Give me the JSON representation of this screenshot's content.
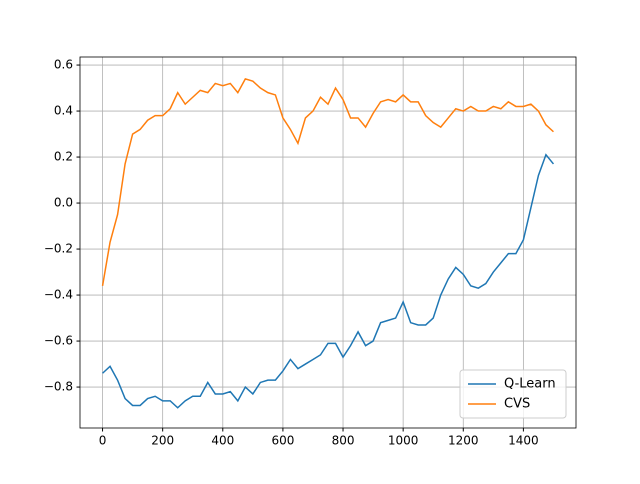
{
  "chart_data": {
    "type": "line",
    "x": [
      0,
      25,
      50,
      75,
      100,
      125,
      150,
      175,
      200,
      225,
      250,
      275,
      300,
      325,
      350,
      375,
      400,
      425,
      450,
      475,
      500,
      525,
      550,
      575,
      600,
      625,
      650,
      675,
      700,
      725,
      750,
      775,
      800,
      825,
      850,
      875,
      900,
      925,
      950,
      975,
      1000,
      1025,
      1050,
      1075,
      1100,
      1125,
      1150,
      1175,
      1200,
      1225,
      1250,
      1275,
      1300,
      1325,
      1350,
      1375,
      1400,
      1425,
      1450,
      1475,
      1500
    ],
    "series": [
      {
        "name": "Q-Learn",
        "color": "#1f77b4",
        "values": [
          -0.74,
          -0.71,
          -0.77,
          -0.85,
          -0.88,
          -0.88,
          -0.85,
          -0.84,
          -0.86,
          -0.86,
          -0.89,
          -0.86,
          -0.84,
          -0.84,
          -0.78,
          -0.83,
          -0.83,
          -0.82,
          -0.86,
          -0.8,
          -0.83,
          -0.78,
          -0.77,
          -0.77,
          -0.73,
          -0.68,
          -0.72,
          -0.7,
          -0.68,
          -0.66,
          -0.61,
          -0.61,
          -0.67,
          -0.62,
          -0.56,
          -0.62,
          -0.6,
          -0.52,
          -0.51,
          -0.5,
          -0.43,
          -0.52,
          -0.53,
          -0.53,
          -0.5,
          -0.4,
          -0.33,
          -0.28,
          -0.31,
          -0.36,
          -0.37,
          -0.35,
          -0.3,
          -0.26,
          -0.22,
          -0.22,
          -0.16,
          -0.02,
          0.12,
          0.21,
          0.17
        ]
      },
      {
        "name": "CVS",
        "color": "#ff7f0e",
        "values": [
          -0.36,
          -0.17,
          -0.05,
          0.17,
          0.3,
          0.32,
          0.36,
          0.38,
          0.38,
          0.41,
          0.48,
          0.43,
          0.46,
          0.49,
          0.48,
          0.52,
          0.51,
          0.52,
          0.48,
          0.54,
          0.53,
          0.5,
          0.48,
          0.47,
          0.37,
          0.32,
          0.26,
          0.37,
          0.4,
          0.46,
          0.43,
          0.5,
          0.45,
          0.37,
          0.37,
          0.33,
          0.39,
          0.44,
          0.45,
          0.44,
          0.47,
          0.44,
          0.44,
          0.38,
          0.35,
          0.33,
          0.37,
          0.41,
          0.4,
          0.42,
          0.4,
          0.4,
          0.42,
          0.41,
          0.44,
          0.42,
          0.42,
          0.43,
          0.4,
          0.34,
          0.31
        ]
      }
    ],
    "xlim": [
      -75,
      1575
    ],
    "ylim": [
      -0.978,
      0.635
    ],
    "xticks": [
      0,
      200,
      400,
      600,
      800,
      1000,
      1200,
      1400
    ],
    "yticks": [
      {
        "value": -0.8,
        "label": "−0.8"
      },
      {
        "value": -0.6,
        "label": "−0.6"
      },
      {
        "value": -0.4,
        "label": "−0.4"
      },
      {
        "value": -0.2,
        "label": "−0.2"
      },
      {
        "value": 0,
        "label": "0.0"
      },
      0.2,
      0.4,
      0.6
    ],
    "grid": true,
    "legend": "lower right"
  }
}
